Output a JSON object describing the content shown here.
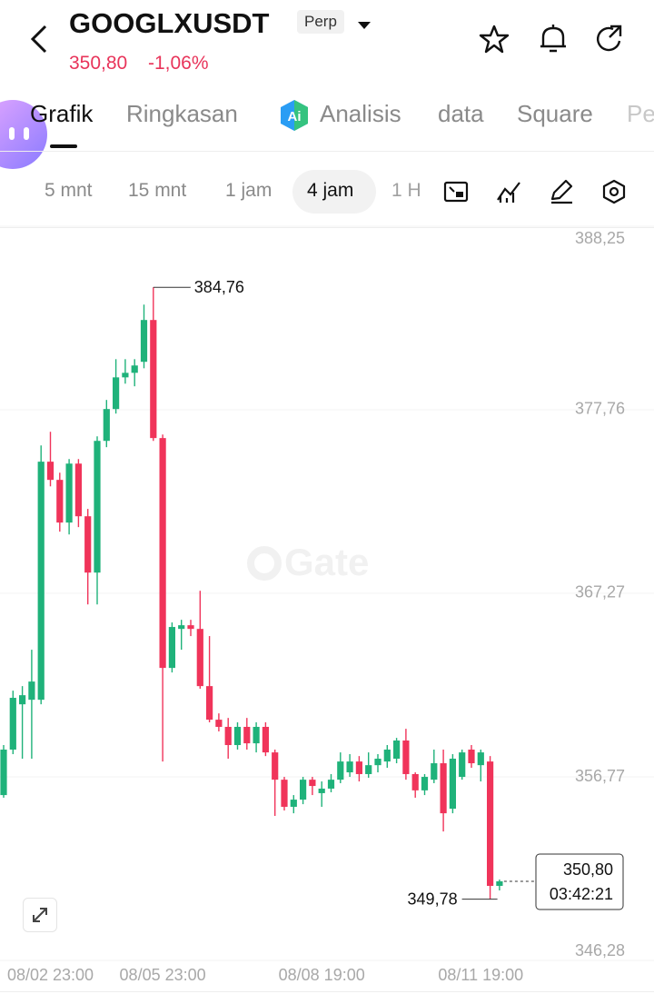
{
  "header": {
    "symbol": "GOOGLXUSDT",
    "badge": "Perp",
    "price": "350,80",
    "change": "-1,06%"
  },
  "tabs": [
    "Grafik",
    "Ringkasan",
    "Analisis",
    "data",
    "Square",
    "Pe"
  ],
  "intervals": [
    "5 mnt",
    "15 mnt",
    "1 jam",
    "4 jam",
    "1 H"
  ],
  "chart_data": {
    "type": "candlestick",
    "watermark": "Gate",
    "up_color": "#1fb27a",
    "down_color": "#f0345a",
    "categories": [
      null,
      null,
      null,
      null,
      null,
      "08/02 23:00",
      null,
      null,
      null,
      null,
      null,
      null,
      null,
      null,
      null,
      null,
      null,
      "08/05 23:00",
      null,
      null,
      null,
      null,
      null,
      null,
      null,
      null,
      null,
      null,
      null,
      null,
      null,
      null,
      null,
      null,
      "08/08 19:00",
      null,
      null,
      null,
      null,
      null,
      null,
      null,
      null,
      null,
      null,
      null,
      null,
      null,
      null,
      null,
      null,
      "08/11 19:00",
      null,
      null
    ],
    "open": [
      355.73,
      358.33,
      360.92,
      361.18,
      361.18,
      374.79,
      373.75,
      371.31,
      374.68,
      371.67,
      368.45,
      375.98,
      377.8,
      379.61,
      379.87,
      380.5,
      382.89,
      376.14,
      363.0,
      365.23,
      365.44,
      365.23,
      361.96,
      360.04,
      359.63,
      358.59,
      359.63,
      358.69,
      359.63,
      358.17,
      356.61,
      355.06,
      355.47,
      356.61,
      355.84,
      356.1,
      356.61,
      357.03,
      357.65,
      356.93,
      357.44,
      357.65,
      357.81,
      358.85,
      356.93,
      356.0,
      356.61,
      357.55,
      354.95,
      356.77,
      358.33,
      357.44,
      357.65,
      350.54
    ],
    "high": [
      358.59,
      361.7,
      361.96,
      364.04,
      375.72,
      376.5,
      374.16,
      374.94,
      374.94,
      372.09,
      376.24,
      378.32,
      380.65,
      380.65,
      380.65,
      383.77,
      384.76,
      376.34,
      365.6,
      365.75,
      365.75,
      367.41,
      364.82,
      360.4,
      360.14,
      359.89,
      360.14,
      359.89,
      359.89,
      358.33,
      356.77,
      355.73,
      356.77,
      356.77,
      356.51,
      356.93,
      358.17,
      358.07,
      357.96,
      358.17,
      358.07,
      358.59,
      359.0,
      359.52,
      357.03,
      356.93,
      358.33,
      358.33,
      358.07,
      358.33,
      358.59,
      358.33,
      357.96,
      350.9
    ],
    "low": [
      355.58,
      358.07,
      357.81,
      357.81,
      360.92,
      373.38,
      370.79,
      370.63,
      371.05,
      366.63,
      366.63,
      375.62,
      377.54,
      379.25,
      379.1,
      380.13,
      375.98,
      357.65,
      362.74,
      364.04,
      364.82,
      361.81,
      359.89,
      359.37,
      357.81,
      358.33,
      358.33,
      358.17,
      357.96,
      354.54,
      354.85,
      354.69,
      355.21,
      355.73,
      355.06,
      355.89,
      356.41,
      356.77,
      356.51,
      356.72,
      357.03,
      357.29,
      357.55,
      356.61,
      355.58,
      355.73,
      356.41,
      353.65,
      354.69,
      356.61,
      357.29,
      356.51,
      349.78,
      350.28
    ],
    "close": [
      358.33,
      361.29,
      361.44,
      362.22,
      374.79,
      373.75,
      371.31,
      374.68,
      371.67,
      368.45,
      375.98,
      377.8,
      379.61,
      379.87,
      380.29,
      382.89,
      376.14,
      363.0,
      365.34,
      365.44,
      365.23,
      361.96,
      360.04,
      359.63,
      358.59,
      359.63,
      358.69,
      359.63,
      358.17,
      356.61,
      355.06,
      355.47,
      356.61,
      356.25,
      356.1,
      356.61,
      357.65,
      357.65,
      356.93,
      357.44,
      357.81,
      358.33,
      358.85,
      356.93,
      356.0,
      356.77,
      357.55,
      354.69,
      357.81,
      358.17,
      357.55,
      358.17,
      350.54,
      350.8
    ],
    "ylim": [
      346.28,
      388.25
    ],
    "yticks": [
      {
        "value": 388.25,
        "label": "388,25"
      },
      {
        "value": 377.76,
        "label": "377,76"
      },
      {
        "value": 367.27,
        "label": "367,27"
      },
      {
        "value": 356.77,
        "label": "356,77"
      },
      {
        "value": 346.28,
        "label": "346,28"
      }
    ],
    "grid": true,
    "high_label": {
      "value": 384.76,
      "label": "384,76"
    },
    "low_label": {
      "value": 349.78,
      "label": "349,78"
    },
    "last_price": {
      "value": 350.8,
      "label": "350,80"
    },
    "countdown": "03:42:21"
  }
}
